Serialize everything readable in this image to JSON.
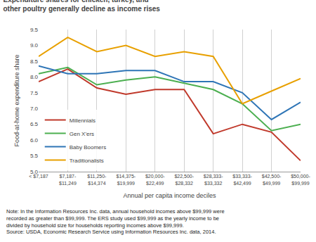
{
  "chart_data": {
    "type": "line",
    "title": "Expenditure shares for chicken, turkey, and other poultry generally decline as income rises",
    "ylabel": "Food-at-home expenditure share",
    "xlabel": "Annual per capita income deciles",
    "categories": [
      "< $7,187",
      "$7,187-\n$11,249",
      "$11,250-\n$14,374",
      "$14,375-\n$19,999",
      "$20,000-\n$22,499",
      "$22,500-\n$28,332",
      "$28,333-\n$33,332",
      "$33,333-\n$42,499",
      "$42,500-\n$49,999",
      "$50,000-\n$99,999"
    ],
    "series": [
      {
        "name": "Millennials",
        "color": "#C0392B",
        "values": [
          7.85,
          8.25,
          7.65,
          7.45,
          7.6,
          7.6,
          6.2,
          6.5,
          6.25,
          5.35
        ]
      },
      {
        "name": "Gen X'ers",
        "color": "#4CAF50",
        "values": [
          8.1,
          8.3,
          7.75,
          7.9,
          8.0,
          7.8,
          7.6,
          7.15,
          6.3,
          6.5
        ]
      },
      {
        "name": "Baby Boomers",
        "color": "#2E75B6",
        "values": [
          8.35,
          8.1,
          8.1,
          8.2,
          8.2,
          7.85,
          7.85,
          7.5,
          6.65,
          7.2
        ]
      },
      {
        "name": "Traditionalists",
        "color": "#E8A000",
        "values": [
          8.65,
          9.25,
          8.8,
          9.0,
          8.65,
          8.8,
          8.65,
          7.15,
          7.55,
          7.95
        ]
      }
    ],
    "ylim": [
      5.0,
      9.5
    ],
    "yticks": [
      {
        "value": 5.0,
        "label": "5.0"
      },
      5.5,
      {
        "value": 6.0,
        "label": "6.0"
      },
      6.5,
      {
        "value": 7.0,
        "label": "7.0"
      },
      7.5,
      {
        "value": 8.0,
        "label": "8.0"
      },
      8.5,
      {
        "value": 9.0,
        "label": "9.0"
      },
      9.5
    ],
    "grid": "x",
    "legend": "lower left",
    "annotations": [
      "Note: In the Information Resources Inc. data, annual household incomes above $99,999 were",
      "recorded as greater than $99,999. The ERS study used $99,999 as the yearly income to be",
      "divided by household size for households reporting incomes above $99,999.",
      "Source: USDA, Economic Research Service using Information Resources Inc. data, 2014."
    ]
  }
}
